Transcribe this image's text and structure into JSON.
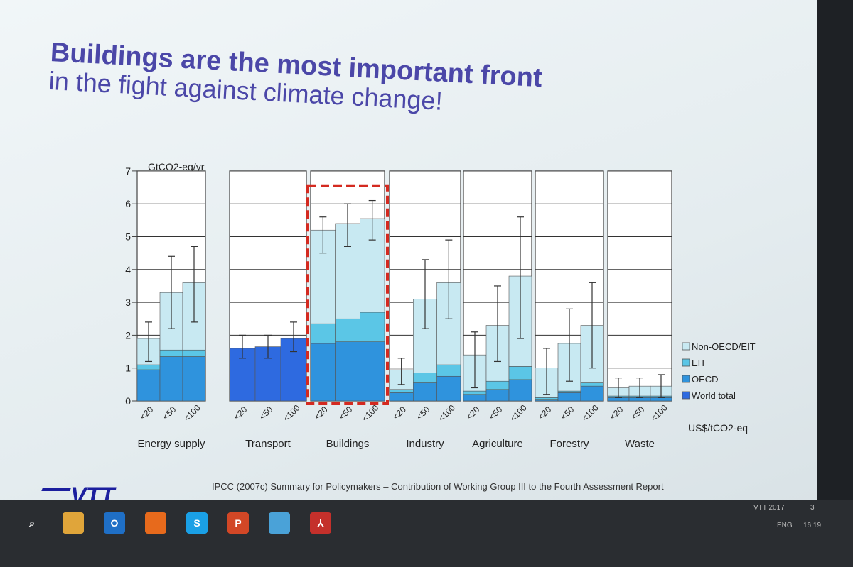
{
  "slide": {
    "title_line1": "Buildings are the most important front",
    "title_line2": "in the fight against climate change!",
    "source": "IPCC (2007c) Summary for Policymakers – Contribution of Working Group III to the Fourth Assessment Report",
    "brand": "VTT",
    "footer_right": "VTT 2017",
    "page_number": "3"
  },
  "taskbar": {
    "items": [
      {
        "icon": "search-icon",
        "label": "⌕"
      },
      {
        "icon": "file-explorer-icon",
        "label": ""
      },
      {
        "icon": "outlook-icon",
        "label": "O"
      },
      {
        "icon": "firefox-icon",
        "label": ""
      },
      {
        "icon": "skype-icon",
        "label": "S"
      },
      {
        "icon": "powerpoint-icon",
        "label": "P"
      },
      {
        "icon": "photos-icon",
        "label": ""
      },
      {
        "icon": "acrobat-icon",
        "label": "⅄"
      }
    ],
    "language": "ENG",
    "time": "16.19"
  },
  "colors": {
    "non_oecd": "#c8e9f2",
    "eit": "#5bc6e6",
    "oecd": "#2f93dd",
    "world_total": "#2e6ae0",
    "highlight": "#d42a20",
    "title": "#4b47a8"
  },
  "chart_data": {
    "type": "bar",
    "stacked": true,
    "ylabel": "GtCO2-eq/yr",
    "xlabel": "US$/tCO2-eq",
    "ylim": [
      0,
      7
    ],
    "yticks": [
      0,
      1,
      2,
      3,
      4,
      5,
      6,
      7
    ],
    "sectors": [
      "Energy supply",
      "Transport",
      "Buildings",
      "Industry",
      "Agriculture",
      "Forestry",
      "Waste"
    ],
    "price_levels": [
      "<20",
      "<50",
      "<100"
    ],
    "legend": [
      "Non-OECD/EIT",
      "EIT",
      "OECD",
      "World total"
    ],
    "highlighted_sector": "Buildings",
    "bars": [
      {
        "sector": "Energy supply",
        "price": "<20",
        "oecd": 0.95,
        "eit": 0.15,
        "non_oecd": 0.8,
        "world_total": null,
        "error": [
          1.2,
          2.4
        ]
      },
      {
        "sector": "Energy supply",
        "price": "<50",
        "oecd": 1.35,
        "eit": 0.2,
        "non_oecd": 1.75,
        "world_total": null,
        "error": [
          2.2,
          4.4
        ]
      },
      {
        "sector": "Energy supply",
        "price": "<100",
        "oecd": 1.35,
        "eit": 0.2,
        "non_oecd": 2.05,
        "world_total": null,
        "error": [
          2.4,
          4.7
        ]
      },
      {
        "sector": "Transport",
        "price": "<20",
        "oecd": 0,
        "eit": 0,
        "non_oecd": 0,
        "world_total": 1.6,
        "error": [
          1.3,
          2.0
        ]
      },
      {
        "sector": "Transport",
        "price": "<50",
        "oecd": 0,
        "eit": 0,
        "non_oecd": 0,
        "world_total": 1.65,
        "error": [
          1.3,
          2.0
        ]
      },
      {
        "sector": "Transport",
        "price": "<100",
        "oecd": 0,
        "eit": 0,
        "non_oecd": 0,
        "world_total": 1.9,
        "error": [
          1.5,
          2.4
        ]
      },
      {
        "sector": "Buildings",
        "price": "<20",
        "oecd": 1.75,
        "eit": 0.6,
        "non_oecd": 2.85,
        "world_total": null,
        "error": [
          4.5,
          5.6
        ]
      },
      {
        "sector": "Buildings",
        "price": "<50",
        "oecd": 1.8,
        "eit": 0.7,
        "non_oecd": 2.9,
        "world_total": null,
        "error": [
          4.7,
          6.0
        ]
      },
      {
        "sector": "Buildings",
        "price": "<100",
        "oecd": 1.8,
        "eit": 0.9,
        "non_oecd": 2.85,
        "world_total": null,
        "error": [
          4.9,
          6.1
        ]
      },
      {
        "sector": "Industry",
        "price": "<20",
        "oecd": 0.25,
        "eit": 0.1,
        "non_oecd": 0.6,
        "world_total": null,
        "error": [
          0.5,
          1.3
        ]
      },
      {
        "sector": "Industry",
        "price": "<50",
        "oecd": 0.55,
        "eit": 0.3,
        "non_oecd": 2.25,
        "world_total": null,
        "error": [
          2.2,
          4.3
        ]
      },
      {
        "sector": "Industry",
        "price": "<100",
        "oecd": 0.75,
        "eit": 0.35,
        "non_oecd": 2.5,
        "world_total": null,
        "error": [
          2.5,
          4.9
        ]
      },
      {
        "sector": "Agriculture",
        "price": "<20",
        "oecd": 0.2,
        "eit": 0.1,
        "non_oecd": 1.1,
        "world_total": null,
        "error": [
          0.4,
          2.1
        ]
      },
      {
        "sector": "Agriculture",
        "price": "<50",
        "oecd": 0.35,
        "eit": 0.25,
        "non_oecd": 1.7,
        "world_total": null,
        "error": [
          1.2,
          3.5
        ]
      },
      {
        "sector": "Agriculture",
        "price": "<100",
        "oecd": 0.65,
        "eit": 0.4,
        "non_oecd": 2.75,
        "world_total": null,
        "error": [
          1.9,
          5.6
        ]
      },
      {
        "sector": "Forestry",
        "price": "<20",
        "oecd": 0.05,
        "eit": 0.05,
        "non_oecd": 0.9,
        "world_total": null,
        "error": [
          0.2,
          1.6
        ]
      },
      {
        "sector": "Forestry",
        "price": "<50",
        "oecd": 0.25,
        "eit": 0.05,
        "non_oecd": 1.45,
        "world_total": null,
        "error": [
          0.6,
          2.8
        ]
      },
      {
        "sector": "Forestry",
        "price": "<100",
        "oecd": 0.45,
        "eit": 0.1,
        "non_oecd": 1.75,
        "world_total": null,
        "error": [
          1.0,
          3.6
        ]
      },
      {
        "sector": "Waste",
        "price": "<20",
        "oecd": 0.1,
        "eit": 0.05,
        "non_oecd": 0.25,
        "world_total": null,
        "error": [
          0.1,
          0.7
        ]
      },
      {
        "sector": "Waste",
        "price": "<50",
        "oecd": 0.1,
        "eit": 0.05,
        "non_oecd": 0.3,
        "world_total": null,
        "error": [
          0.1,
          0.7
        ]
      },
      {
        "sector": "Waste",
        "price": "<100",
        "oecd": 0.1,
        "eit": 0.05,
        "non_oecd": 0.3,
        "world_total": null,
        "error": [
          0.1,
          0.8
        ]
      }
    ]
  }
}
